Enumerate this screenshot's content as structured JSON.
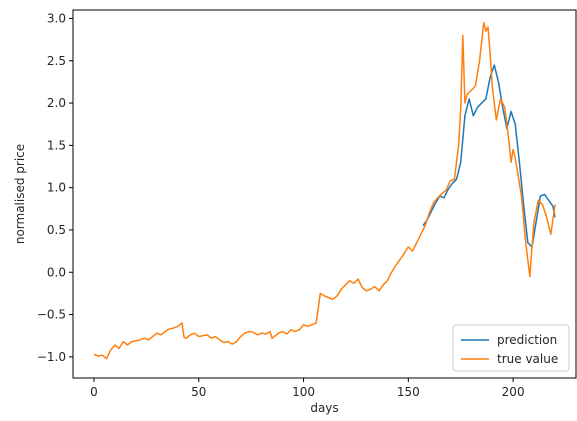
{
  "chart_data": {
    "type": "line",
    "xlabel": "days",
    "ylabel": "normalised price",
    "xlim": [
      -10,
      230
    ],
    "ylim": [
      -1.25,
      3.1
    ],
    "xticks": [
      0,
      50,
      100,
      150,
      200
    ],
    "yticks": [
      -1.0,
      -0.5,
      0.0,
      0.5,
      1.0,
      1.5,
      2.0,
      2.5,
      3.0
    ],
    "ytick_labels": [
      "−1.0",
      "−0.5",
      "0.0",
      "0.5",
      "1.0",
      "1.5",
      "2.0",
      "2.5",
      "3.0"
    ],
    "xtick_labels": [
      "0",
      "50",
      "100",
      "150",
      "200"
    ],
    "grid": false,
    "legend_position": "lower-right",
    "series": [
      {
        "name": "prediction",
        "color": "#1f77b4",
        "x": [
          157,
          159,
          161,
          163,
          165,
          167,
          169,
          171,
          173,
          175,
          177,
          179,
          181,
          183,
          185,
          187,
          189,
          191,
          193,
          195,
          197,
          199,
          201,
          203,
          205,
          207,
          209,
          211,
          213,
          215,
          217,
          219,
          220
        ],
        "y": [
          0.55,
          0.62,
          0.72,
          0.82,
          0.9,
          0.88,
          0.98,
          1.05,
          1.1,
          1.3,
          1.85,
          2.05,
          1.85,
          1.95,
          2.0,
          2.05,
          2.3,
          2.45,
          2.25,
          1.95,
          1.7,
          1.9,
          1.75,
          1.3,
          0.8,
          0.35,
          0.3,
          0.6,
          0.9,
          0.92,
          0.85,
          0.78,
          0.65
        ]
      },
      {
        "name": "true value",
        "color": "#ff7f0e",
        "x": [
          0,
          2,
          4,
          6,
          8,
          10,
          12,
          14,
          16,
          18,
          20,
          22,
          24,
          26,
          28,
          30,
          32,
          34,
          36,
          38,
          40,
          42,
          43,
          44,
          46,
          48,
          50,
          52,
          54,
          56,
          58,
          60,
          62,
          64,
          66,
          68,
          70,
          72,
          74,
          76,
          78,
          80,
          82,
          84,
          85,
          86,
          88,
          90,
          92,
          94,
          96,
          98,
          100,
          102,
          104,
          106,
          108,
          110,
          112,
          114,
          116,
          118,
          120,
          122,
          124,
          126,
          128,
          130,
          132,
          134,
          136,
          138,
          140,
          142,
          144,
          146,
          148,
          150,
          152,
          154,
          156,
          158,
          160,
          162,
          164,
          166,
          168,
          170,
          172,
          174,
          175,
          176,
          177,
          178,
          180,
          182,
          184,
          186,
          187,
          188,
          189,
          190,
          192,
          194,
          196,
          198,
          199,
          200,
          201,
          202,
          204,
          206,
          208,
          209,
          210,
          212,
          214,
          216,
          218,
          220
        ],
        "y": [
          -0.97,
          -0.99,
          -0.98,
          -1.02,
          -0.92,
          -0.86,
          -0.9,
          -0.82,
          -0.86,
          -0.82,
          -0.81,
          -0.8,
          -0.78,
          -0.8,
          -0.76,
          -0.72,
          -0.74,
          -0.7,
          -0.67,
          -0.66,
          -0.64,
          -0.6,
          -0.77,
          -0.78,
          -0.74,
          -0.72,
          -0.76,
          -0.75,
          -0.74,
          -0.78,
          -0.76,
          -0.8,
          -0.83,
          -0.82,
          -0.85,
          -0.82,
          -0.76,
          -0.72,
          -0.7,
          -0.71,
          -0.74,
          -0.72,
          -0.73,
          -0.7,
          -0.78,
          -0.76,
          -0.72,
          -0.7,
          -0.73,
          -0.68,
          -0.7,
          -0.68,
          -0.62,
          -0.64,
          -0.62,
          -0.6,
          -0.25,
          -0.28,
          -0.3,
          -0.32,
          -0.28,
          -0.2,
          -0.15,
          -0.1,
          -0.13,
          -0.08,
          -0.18,
          -0.22,
          -0.2,
          -0.17,
          -0.22,
          -0.15,
          -0.1,
          0.0,
          0.08,
          0.15,
          0.22,
          0.3,
          0.25,
          0.35,
          0.45,
          0.55,
          0.7,
          0.82,
          0.88,
          0.93,
          0.97,
          1.08,
          1.1,
          1.5,
          1.95,
          2.8,
          2.0,
          2.1,
          2.15,
          2.2,
          2.5,
          2.95,
          2.85,
          2.9,
          2.6,
          2.2,
          1.8,
          2.05,
          1.95,
          1.55,
          1.3,
          1.45,
          1.35,
          1.2,
          0.9,
          0.35,
          -0.05,
          0.3,
          0.6,
          0.85,
          0.8,
          0.65,
          0.45,
          0.8
        ]
      }
    ]
  }
}
